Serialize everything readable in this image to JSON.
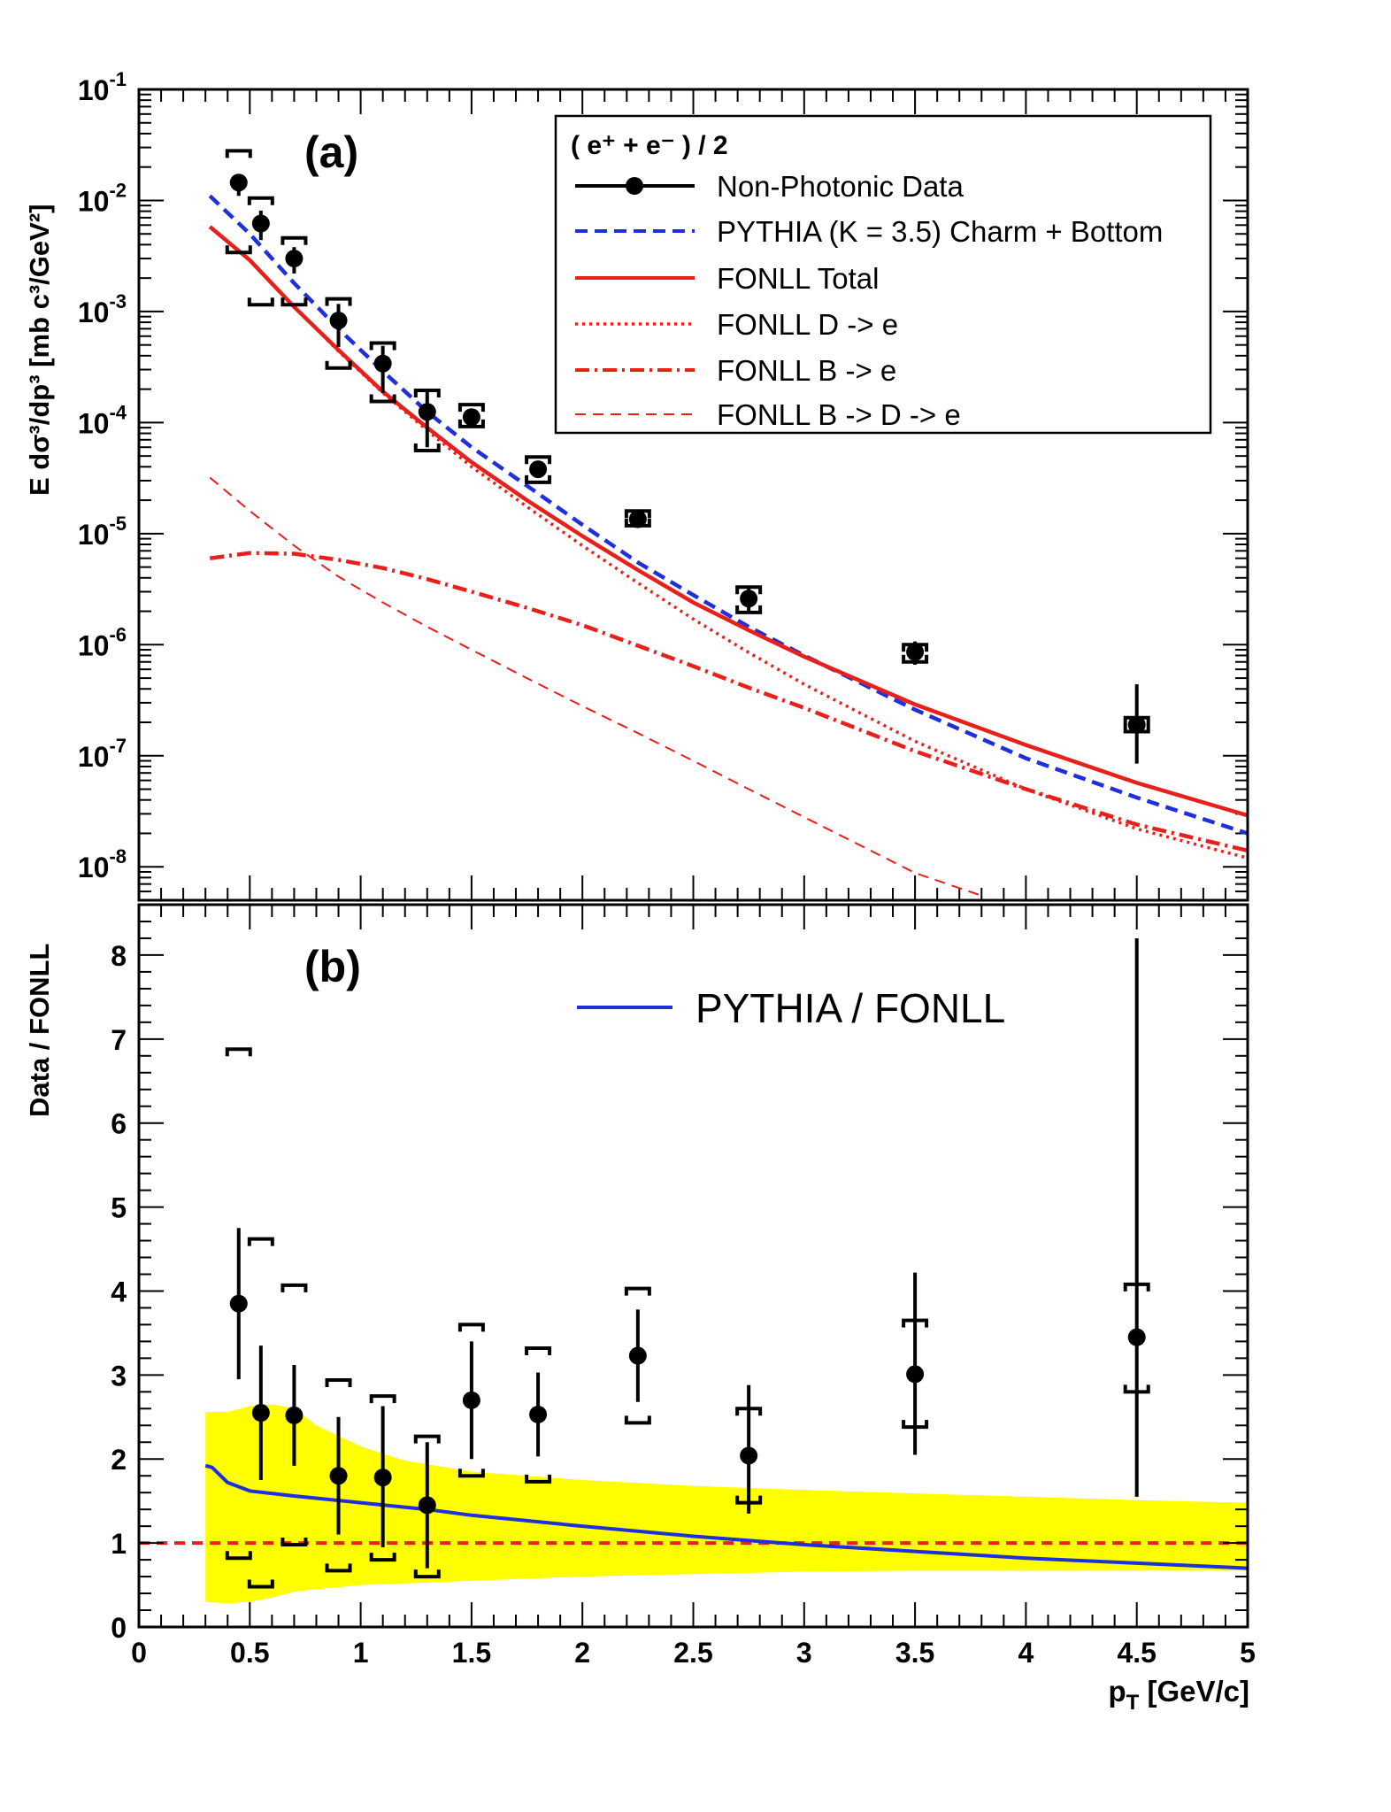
{
  "chart_data": [
    {
      "panel": "(a)",
      "type": "scatter",
      "xlim": [
        0,
        5
      ],
      "ylim": [
        5e-09,
        0.1
      ],
      "yscale": "log",
      "ylabel": "E dσ³/dp³ [mb c³/GeV²]",
      "y_tick_labels": [
        {
          "base": "10",
          "exp": "-1"
        },
        {
          "base": "10",
          "exp": "-2"
        },
        {
          "base": "10",
          "exp": "-3"
        },
        {
          "base": "10",
          "exp": "-4"
        },
        {
          "base": "10",
          "exp": "-5"
        },
        {
          "base": "10",
          "exp": "-6"
        },
        {
          "base": "10",
          "exp": "-7"
        },
        {
          "base": "10",
          "exp": "-8"
        }
      ],
      "legend_title": "( e⁺ + e⁻ ) / 2",
      "legend_position": "top-right",
      "data": {
        "name": "Non-Photonic Data",
        "color": "#000000",
        "x": [
          0.45,
          0.55,
          0.7,
          0.9,
          1.1,
          1.3,
          1.5,
          1.8,
          2.25,
          2.75,
          3.5,
          4.5
        ],
        "y": [
          0.0145,
          0.0062,
          0.003,
          0.00083,
          0.00034,
          0.000125,
          0.000112,
          3.8e-05,
          1.35e-05,
          2.6e-06,
          8.6e-07,
          1.9e-07
        ],
        "stat_lo": [
          0.011,
          0.0044,
          0.0022,
          0.00048,
          0.000185,
          6e-05,
          9.2e-05,
          3.2e-05,
          1.18e-05,
          1.9e-06,
          6.6e-07,
          8.5e-08
        ],
        "stat_hi": [
          0.017,
          0.0081,
          0.0038,
          0.00117,
          0.00049,
          0.00019,
          0.000133,
          4.4e-05,
          1.52e-05,
          3.3e-06,
          1.07e-06,
          4.4e-07
        ],
        "sys_lo": [
          0.0034,
          0.00115,
          0.00115,
          0.00031,
          0.000155,
          5.6e-05,
          9.2e-05,
          2.9e-05,
          1.18e-05,
          1.95e-06,
          7e-07,
          1.65e-07
        ],
        "sys_hi": [
          0.028,
          0.0105,
          0.0046,
          0.0013,
          0.00052,
          0.000195,
          0.000145,
          4.9e-05,
          1.6e-05,
          3.3e-06,
          1e-06,
          2.2e-07
        ]
      },
      "curves": [
        {
          "name": "PYTHIA (K = 3.5) Charm + Bottom",
          "style": "dashed",
          "color": "#1f2fdc",
          "x": [
            0.32,
            0.5,
            0.7,
            0.9,
            1.1,
            1.3,
            1.5,
            1.75,
            2.0,
            2.25,
            2.5,
            2.75,
            3.0,
            3.5,
            4.0,
            4.5,
            5.0
          ],
          "y": [
            0.011,
            0.005,
            0.0018,
            0.0007,
            0.00029,
            0.000125,
            6e-05,
            2.7e-05,
            1.2e-05,
            5.5e-06,
            2.8e-06,
            1.45e-06,
            8e-07,
            2.6e-07,
            9.5e-08,
            4.2e-08,
            2e-08
          ]
        },
        {
          "name": "FONLL Total",
          "style": "solid",
          "color": "#e8201c",
          "x": [
            0.32,
            0.5,
            0.7,
            0.9,
            1.1,
            1.3,
            1.5,
            1.75,
            2.0,
            2.25,
            2.5,
            2.75,
            3.0,
            3.5,
            4.0,
            4.5,
            5.0
          ],
          "y": [
            0.0058,
            0.0029,
            0.0011,
            0.00045,
            0.00019,
            9e-05,
            4.4e-05,
            2e-05,
            9.5e-06,
            4.7e-06,
            2.4e-06,
            1.35e-06,
            7.8e-07,
            2.9e-07,
            1.25e-07,
            5.7e-08,
            2.9e-08
          ]
        },
        {
          "name": "FONLL D -> e",
          "style": "dotted",
          "color": "#e8201c",
          "x": [
            0.32,
            0.5,
            0.7,
            0.9,
            1.1,
            1.3,
            1.5,
            1.75,
            2.0,
            2.25,
            2.5,
            2.75,
            3.0,
            3.5,
            4.0,
            4.5,
            5.0
          ],
          "y": [
            0.0058,
            0.0029,
            0.0011,
            0.00044,
            0.000185,
            8.5e-05,
            4e-05,
            1.75e-05,
            7.8e-06,
            3.6e-06,
            1.7e-06,
            8.5e-07,
            4.4e-07,
            1.35e-07,
            5e-08,
            2.2e-08,
            1.2e-08
          ]
        },
        {
          "name": "FONLL B -> e",
          "style": "dashdot",
          "color": "#e8201c",
          "x": [
            0.32,
            0.5,
            0.7,
            0.9,
            1.1,
            1.3,
            1.5,
            1.75,
            2.0,
            2.25,
            2.5,
            2.75,
            3.0,
            3.5,
            4.0,
            4.5,
            5.0
          ],
          "y": [
            6e-06,
            6.7e-06,
            6.6e-06,
            5.8e-06,
            4.9e-06,
            3.9e-06,
            3e-06,
            2.15e-06,
            1.5e-06,
            9.8e-07,
            6.4e-07,
            4.1e-07,
            2.7e-07,
            1.1e-07,
            5e-08,
            2.4e-08,
            1.4e-08
          ]
        },
        {
          "name": "FONLL B -> D -> e",
          "style": "thin-dashed",
          "color": "#e8201c",
          "x": [
            0.32,
            0.5,
            0.7,
            0.9,
            1.1,
            1.3,
            1.5,
            1.75,
            2.0,
            2.25,
            2.5,
            2.75,
            3.0,
            3.5,
            3.8
          ],
          "y": [
            3.2e-05,
            1.6e-05,
            7.8e-06,
            4.1e-06,
            2.4e-06,
            1.45e-06,
            9e-07,
            5e-07,
            2.8e-07,
            1.6e-07,
            9e-08,
            5e-08,
            2.8e-08,
            8.8e-09,
            5.5e-09
          ]
        }
      ]
    },
    {
      "panel": "(b)",
      "type": "scatter",
      "xlim": [
        0,
        5
      ],
      "ylim": [
        0,
        8.6
      ],
      "xlabel": "p_T [GeV/c]",
      "xlabel_main": "p",
      "xlabel_sub": "T",
      "xlabel_unit": " [GeV/c]",
      "ylabel": "Data / FONLL",
      "x_tick_labels": [
        "0",
        "0.5",
        "1",
        "1.5",
        "2",
        "2.5",
        "3",
        "3.5",
        "4",
        "4.5",
        "5"
      ],
      "y_tick_labels": [
        "0",
        "1",
        "2",
        "3",
        "4",
        "5",
        "6",
        "7",
        "8"
      ],
      "legend": "PYTHIA / FONLL",
      "ratio_points": {
        "color": "#000000",
        "x": [
          0.45,
          0.55,
          0.7,
          0.9,
          1.1,
          1.3,
          1.5,
          1.8,
          2.25,
          2.75,
          3.5,
          4.5
        ],
        "y": [
          3.85,
          2.55,
          2.52,
          1.8,
          1.78,
          1.45,
          2.7,
          2.53,
          3.23,
          2.04,
          3.01,
          3.45
        ],
        "stat_lo": [
          2.95,
          1.75,
          1.92,
          1.1,
          0.95,
          0.7,
          2.0,
          2.03,
          2.68,
          1.35,
          2.05,
          1.55
        ],
        "stat_hi": [
          4.75,
          3.35,
          3.12,
          2.5,
          2.63,
          2.2,
          3.4,
          3.03,
          3.78,
          2.88,
          4.22,
          8.2
        ],
        "sys_lo": [
          0.82,
          0.48,
          0.98,
          0.67,
          0.8,
          0.6,
          1.8,
          1.73,
          2.43,
          1.48,
          2.38,
          2.8
        ],
        "sys_hi": [
          6.88,
          4.62,
          4.07,
          2.94,
          2.75,
          2.27,
          3.6,
          3.32,
          4.03,
          2.6,
          3.65,
          4.08
        ]
      },
      "pythia_ratio": {
        "name": "PYTHIA / FONLL",
        "color": "#1f2fdc",
        "x": [
          0.3,
          0.33,
          0.4,
          0.5,
          0.7,
          1.0,
          1.3,
          1.5,
          2.0,
          2.5,
          3.0,
          3.5,
          4.0,
          4.5,
          5.0
        ],
        "y": [
          1.92,
          1.9,
          1.72,
          1.62,
          1.56,
          1.48,
          1.4,
          1.33,
          1.2,
          1.08,
          0.98,
          0.9,
          0.82,
          0.76,
          0.7
        ]
      },
      "uncertainty_band": {
        "color": "#ffff00",
        "x": [
          0.3,
          0.4,
          0.5,
          0.6,
          0.7,
          0.8,
          1.0,
          1.2,
          1.5,
          2.0,
          2.5,
          3.0,
          3.5,
          4.0,
          4.5,
          5.0
        ],
        "lo": [
          0.3,
          0.28,
          0.3,
          0.35,
          0.42,
          0.45,
          0.5,
          0.52,
          0.55,
          0.6,
          0.63,
          0.66,
          0.67,
          0.67,
          0.67,
          0.67
        ],
        "hi": [
          2.56,
          2.56,
          2.63,
          2.65,
          2.6,
          2.4,
          2.15,
          1.98,
          1.85,
          1.75,
          1.68,
          1.63,
          1.59,
          1.55,
          1.51,
          1.48
        ]
      },
      "reference_line": {
        "y": 1,
        "style": "dashed",
        "color": "#e8201c"
      }
    }
  ]
}
